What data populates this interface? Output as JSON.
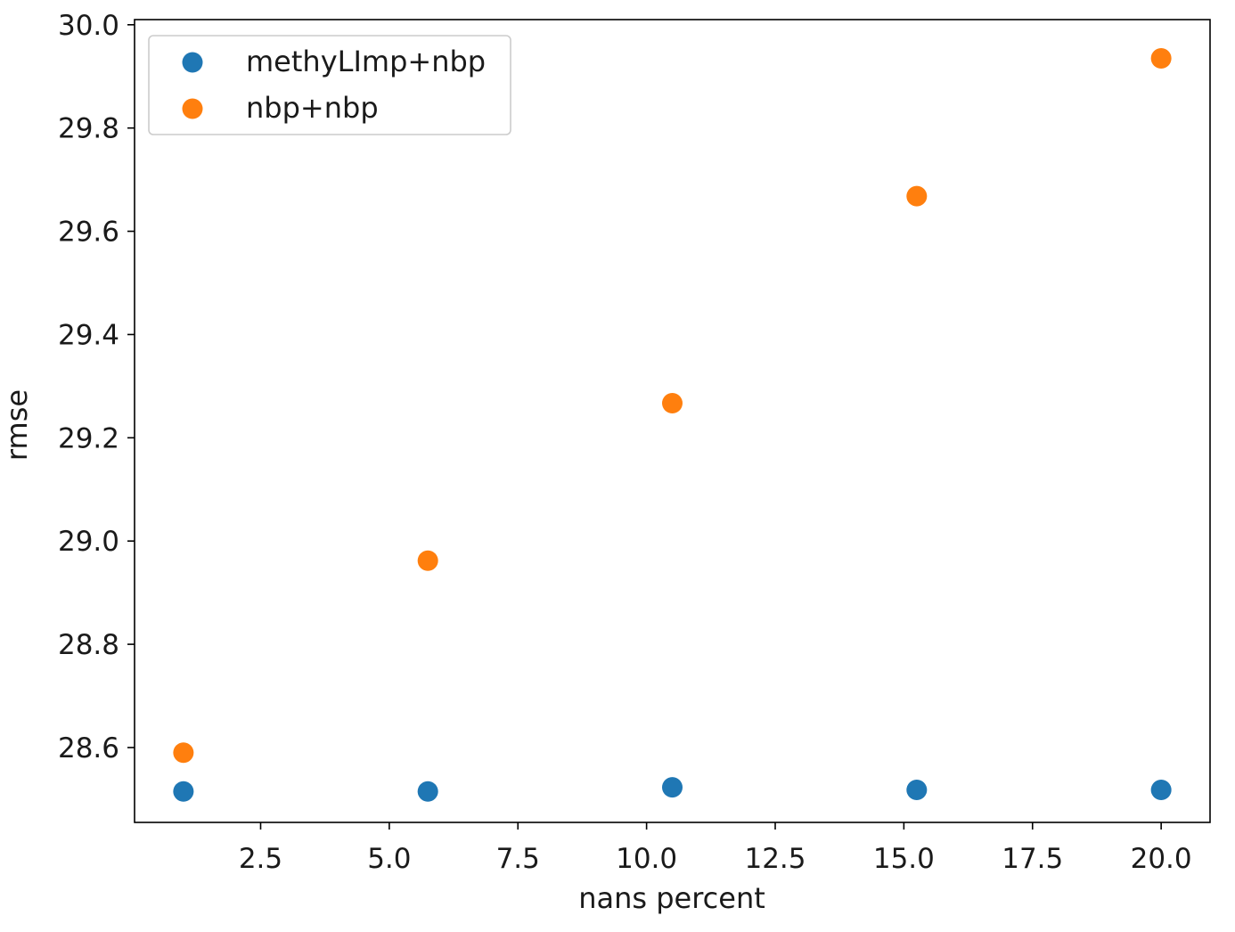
{
  "chart_data": {
    "type": "scatter",
    "title": "",
    "xlabel": "nans percent",
    "ylabel": "rmse",
    "xlim": [
      0.05,
      20.95
    ],
    "ylim": [
      28.455,
      30.01
    ],
    "xticks": [
      2.5,
      5.0,
      7.5,
      10.0,
      12.5,
      15.0,
      17.5,
      20.0
    ],
    "xtick_labels": [
      "2.5",
      "5.0",
      "7.5",
      "10.0",
      "12.5",
      "15.0",
      "17.5",
      "20.0"
    ],
    "yticks": [
      28.6,
      28.8,
      29.0,
      29.2,
      29.4,
      29.6,
      29.8,
      30.0
    ],
    "ytick_labels": [
      "28.6",
      "28.8",
      "29.0",
      "29.2",
      "29.4",
      "29.6",
      "29.8",
      "30.0"
    ],
    "grid": false,
    "legend_position": "top-left",
    "series": [
      {
        "name": "methyLImp+nbp",
        "color": "#1f77b4",
        "x": [
          1.0,
          5.75,
          10.5,
          15.25,
          20.0
        ],
        "y": [
          28.515,
          28.515,
          28.523,
          28.518,
          28.518
        ]
      },
      {
        "name": "nbp+nbp",
        "color": "#ff7f0e",
        "x": [
          1.0,
          5.75,
          10.5,
          15.25,
          20.0
        ],
        "y": [
          28.59,
          28.962,
          29.267,
          29.668,
          29.935
        ]
      }
    ]
  }
}
